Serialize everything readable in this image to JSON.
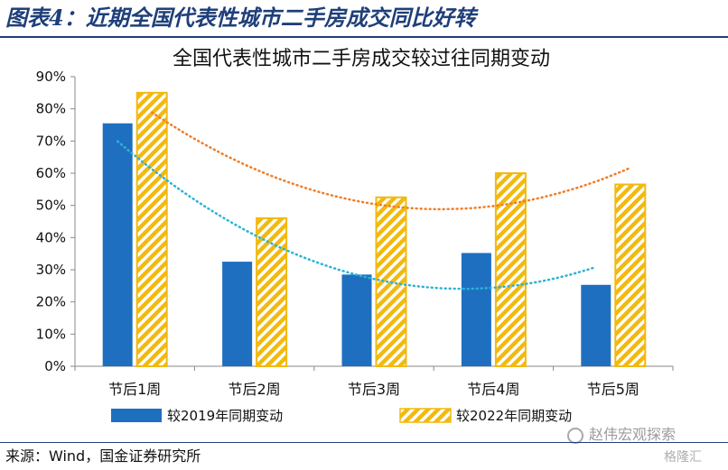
{
  "figure": {
    "title": "图表4：近期全国代表性城市二手房成交同比好转",
    "source": "来源：Wind，国金证券研究所",
    "watermark": "赵伟宏观探索",
    "watermark_small": "格隆汇"
  },
  "chart_data": {
    "type": "bar",
    "title": "全国代表性城市二手房成交较过往同期变动",
    "categories": [
      "节后1周",
      "节后2周",
      "节后3周",
      "节后4周",
      "节后5周"
    ],
    "series": [
      {
        "name": "较2019年同期变动",
        "values": [
          0.755,
          0.325,
          0.285,
          0.352,
          0.253
        ],
        "color": "#1f6fc0",
        "pattern": "solid",
        "trend_color": "#2bb3d6"
      },
      {
        "name": "较2022年同期变动",
        "values": [
          0.85,
          0.46,
          0.525,
          0.6,
          0.565
        ],
        "color": "#f2b90f",
        "pattern": "diagonal-hatch",
        "trend_color": "#f07d28"
      }
    ],
    "trendlines": "polynomial (dotted), one per series",
    "ylim": [
      0,
      0.9
    ],
    "yticks": [
      "0%",
      "10%",
      "20%",
      "30%",
      "40%",
      "50%",
      "60%",
      "70%",
      "80%",
      "90%"
    ],
    "xlabel": "",
    "ylabel": "",
    "grid": false,
    "legend_position": "bottom"
  }
}
